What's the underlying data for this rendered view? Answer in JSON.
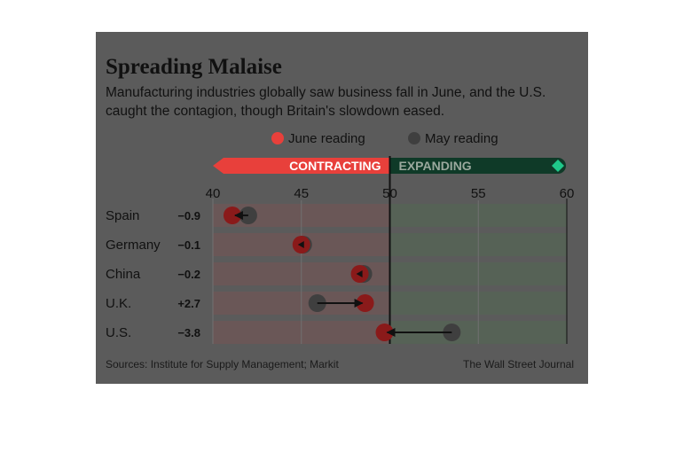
{
  "title": "Spreading Malaise",
  "subtitle": "Manufacturing industries globally saw business fall in June, and the U.S. caught the contagion, though Britain's slowdown eased.",
  "source": "Sources: Institute for Supply Management; Markit",
  "publisher": "The Wall Street Journal",
  "colors": {
    "panel": "#5b5b5b",
    "june": "#8a1a1a",
    "june_legend": "#e8403b",
    "may": "#3f3f3f",
    "contracting_bar": "#e8403b",
    "expanding_bar": "#0f3a28",
    "expanding_tip": "#1fc88a",
    "band_left": "#6a5757",
    "band_right": "#566256"
  },
  "chart_data": {
    "type": "scatter",
    "title": "Spreading Malaise",
    "xlim": [
      40,
      60
    ],
    "xticks": [
      40,
      45,
      50,
      55,
      60
    ],
    "threshold": 50,
    "scale": {
      "contracting_label": "CONTRACTING",
      "expanding_label": "EXPANDING"
    },
    "legend": [
      {
        "name": "June reading"
      },
      {
        "name": "May reading"
      }
    ],
    "legend_position": "top-center",
    "categories": [
      "Spain",
      "Germany",
      "China",
      "U.K.",
      "U.S."
    ],
    "changes": [
      "−0.9",
      "−0.1",
      "−0.2",
      "+2.7",
      "−3.8"
    ],
    "series": [
      {
        "name": "June reading",
        "values": [
          41.1,
          45.0,
          48.3,
          48.6,
          49.7
        ]
      },
      {
        "name": "May reading",
        "values": [
          42.0,
          45.1,
          48.5,
          45.9,
          53.5
        ]
      }
    ]
  }
}
